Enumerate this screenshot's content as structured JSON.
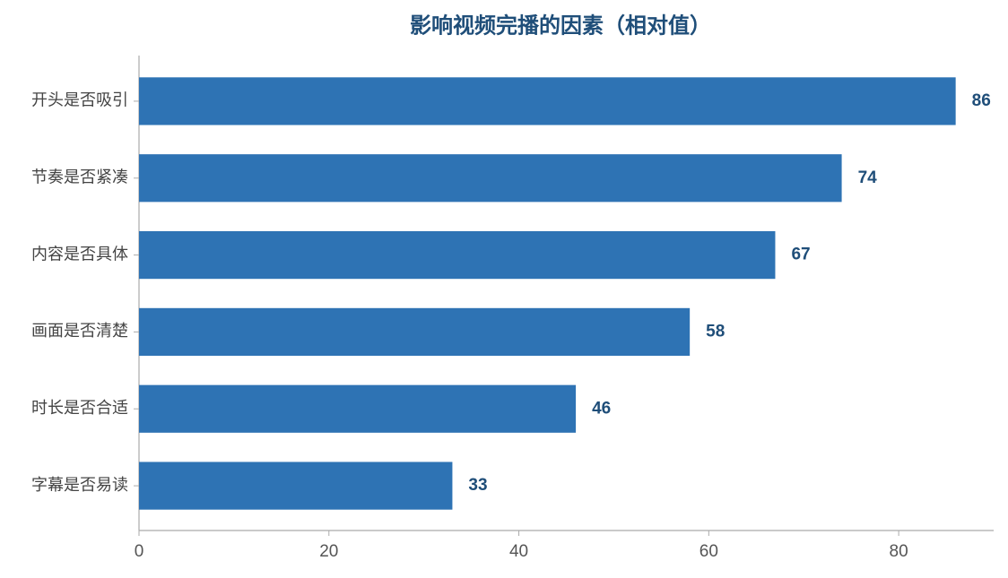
{
  "chart_data": {
    "type": "hbar",
    "title": "影响视频完播的因素（相对值）",
    "categories": [
      "开头是否吸引",
      "节奏是否紧凑",
      "内容是否具体",
      "画面是否清楚",
      "时长是否合适",
      "字幕是否易读"
    ],
    "values": [
      86,
      74,
      67,
      58,
      46,
      33
    ],
    "color": "#2e73b4",
    "xlim": [
      0,
      90
    ],
    "xticks": [
      0,
      20,
      40,
      60,
      80
    ],
    "grid": false
  }
}
